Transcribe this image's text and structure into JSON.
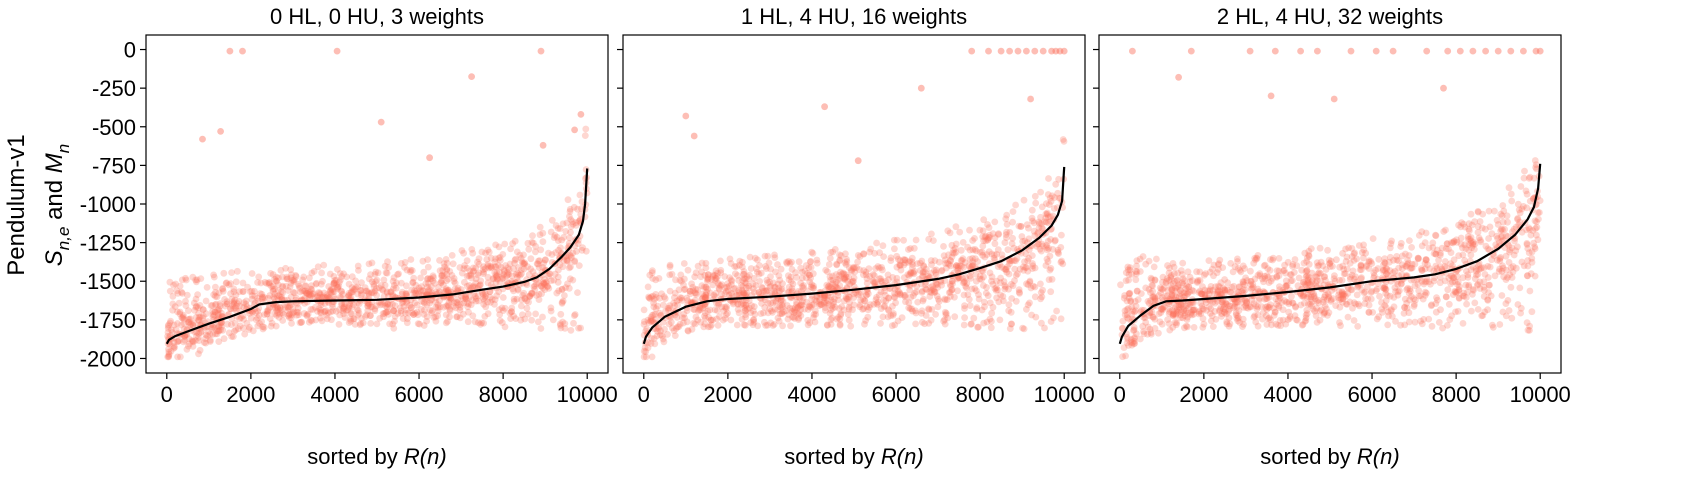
{
  "row_label": "Pendulum-v1",
  "y_label": {
    "prefix": "S",
    "subscript": "n,e",
    "middle": " and ",
    "prefix2": "M",
    "subscript2": "n"
  },
  "x_label": {
    "text": "sorted by ",
    "italic": "R(n)"
  },
  "colors": {
    "points": "#fa6e5a",
    "mean_line": "#000000"
  },
  "chart_data": [
    {
      "type": "scatter",
      "title": "0 HL, 0 HU, 3 weights",
      "xlim": [
        0,
        10000
      ],
      "ylim": [
        -2000,
        0
      ],
      "x_ticks": [
        0,
        2000,
        4000,
        6000,
        8000,
        10000
      ],
      "y_ticks": [
        0,
        -250,
        -500,
        -750,
        -1000,
        -1250,
        -1500,
        -1750,
        -2000
      ],
      "series": [
        {
          "mean_curve": {
            "x": [
              0,
              50,
              200,
              500,
              1000,
              1500,
              2000,
              2200,
              2600,
              3000,
              4000,
              5000,
              6000,
              6800,
              7500,
              8000,
              8500,
              8800,
              9100,
              9400,
              9600,
              9800,
              9900,
              9950,
              10000
            ],
            "y": [
              -1905,
              -1880,
              -1855,
              -1825,
              -1775,
              -1730,
              -1680,
              -1650,
              -1635,
              -1630,
              -1625,
              -1620,
              -1605,
              -1585,
              -1555,
              -1535,
              -1505,
              -1475,
              -1420,
              -1340,
              -1280,
              -1200,
              -1110,
              -1000,
              -770
            ]
          },
          "band_upper": [
            -1500,
            -1495,
            -1480,
            -1470,
            -1455,
            -1440,
            -1420,
            -1420,
            -1420,
            -1410,
            -1390,
            -1370,
            -1340,
            -1310,
            -1280,
            -1250,
            -1200,
            -1150,
            -1100,
            -1000,
            -950,
            -900,
            -850,
            -750,
            -650
          ],
          "band_lower": [
            -1950,
            -1950,
            -1940,
            -1920,
            -1900,
            -1880,
            -1840,
            -1820,
            -1800,
            -1790,
            -1780,
            -1780,
            -1780,
            -1780,
            -1790,
            -1800,
            -1800,
            -1810,
            -1820,
            -1830,
            -1850,
            -1860,
            -1860,
            -1850,
            -1830
          ],
          "outliers_x": [
            1500,
            1800,
            4050,
            8900,
            7250,
            1280,
            850,
            5100,
            6250,
            8950,
            9850,
            9700
          ],
          "outliers_y": [
            -10,
            -10,
            -10,
            -10,
            -175,
            -530,
            -580,
            -470,
            -700,
            -620,
            -420,
            -520
          ]
        }
      ]
    },
    {
      "type": "scatter",
      "title": "1 HL, 4 HU, 16 weights",
      "xlim": [
        0,
        10000
      ],
      "ylim": [
        -2000,
        0
      ],
      "x_ticks": [
        0,
        2000,
        4000,
        6000,
        8000,
        10000
      ],
      "y_ticks": [
        0,
        -250,
        -500,
        -750,
        -1000,
        -1250,
        -1500,
        -1750,
        -2000
      ],
      "series": [
        {
          "mean_curve": {
            "x": [
              0,
              50,
              200,
              500,
              1000,
              1500,
              1800,
              2000,
              3000,
              4000,
              5000,
              6000,
              7000,
              7500,
              8000,
              8500,
              9000,
              9400,
              9700,
              9850,
              9950,
              10000
            ],
            "y": [
              -1905,
              -1860,
              -1800,
              -1730,
              -1665,
              -1630,
              -1620,
              -1615,
              -1600,
              -1580,
              -1555,
              -1525,
              -1485,
              -1455,
              -1415,
              -1370,
              -1300,
              -1220,
              -1140,
              -1070,
              -980,
              -760
            ]
          },
          "band_upper": [
            -1500,
            -1480,
            -1420,
            -1400,
            -1380,
            -1370,
            -1360,
            -1350,
            -1330,
            -1300,
            -1270,
            -1230,
            -1180,
            -1140,
            -1100,
            -1050,
            -960,
            -900,
            -850,
            -800,
            -700,
            -620
          ],
          "band_lower": [
            -1960,
            -1950,
            -1920,
            -1880,
            -1830,
            -1800,
            -1790,
            -1790,
            -1790,
            -1790,
            -1790,
            -1790,
            -1790,
            -1800,
            -1800,
            -1810,
            -1810,
            -1820,
            -1830,
            -1830,
            -1820,
            -1800
          ],
          "outliers_x": [
            7800,
            8200,
            8500,
            8700,
            8900,
            9100,
            9300,
            9500,
            9700,
            9800,
            9900,
            10000,
            1000,
            1200,
            4300,
            6600,
            5100,
            9200
          ],
          "outliers_y": [
            -10,
            -10,
            -10,
            -10,
            -10,
            -10,
            -10,
            -10,
            -10,
            -10,
            -10,
            -10,
            -430,
            -560,
            -370,
            -250,
            -720,
            -320
          ]
        }
      ]
    },
    {
      "type": "scatter",
      "title": "2 HL, 4 HU, 32 weights",
      "xlim": [
        0,
        10000
      ],
      "ylim": [
        -2000,
        0
      ],
      "x_ticks": [
        0,
        2000,
        4000,
        6000,
        8000,
        10000
      ],
      "y_ticks": [
        0,
        -250,
        -500,
        -750,
        -1000,
        -1250,
        -1500,
        -1750,
        -2000
      ],
      "series": [
        {
          "mean_curve": {
            "x": [
              0,
              50,
              200,
              500,
              800,
              1100,
              1500,
              2000,
              3000,
              4000,
              5000,
              6000,
              7000,
              7500,
              8000,
              8500,
              9000,
              9400,
              9700,
              9850,
              9950,
              10000
            ],
            "y": [
              -1905,
              -1860,
              -1790,
              -1720,
              -1660,
              -1630,
              -1625,
              -1615,
              -1595,
              -1570,
              -1540,
              -1500,
              -1475,
              -1455,
              -1420,
              -1370,
              -1290,
              -1200,
              -1100,
              -1020,
              -900,
              -740
            ]
          },
          "band_upper": [
            -1500,
            -1470,
            -1400,
            -1300,
            -1340,
            -1380,
            -1380,
            -1370,
            -1340,
            -1300,
            -1260,
            -1220,
            -1180,
            -1140,
            -1100,
            -1040,
            -960,
            -880,
            -820,
            -760,
            -700,
            -560
          ],
          "band_lower": [
            -1960,
            -1950,
            -1920,
            -1880,
            -1850,
            -1820,
            -1810,
            -1800,
            -1800,
            -1800,
            -1800,
            -1800,
            -1800,
            -1810,
            -1810,
            -1820,
            -1820,
            -1830,
            -1840,
            -1840,
            -1830,
            -1820
          ],
          "outliers_x": [
            300,
            1700,
            3100,
            3700,
            4300,
            4700,
            5500,
            6100,
            6500,
            7300,
            7800,
            8100,
            8400,
            8700,
            9000,
            9300,
            9600,
            9900,
            10000,
            1400,
            3600,
            5100,
            7700
          ],
          "outliers_y": [
            -10,
            -10,
            -10,
            -10,
            -10,
            -10,
            -10,
            -10,
            -10,
            -10,
            -10,
            -10,
            -10,
            -10,
            -10,
            -10,
            -10,
            -10,
            -10,
            -180,
            -300,
            -320,
            -250
          ]
        }
      ]
    }
  ]
}
